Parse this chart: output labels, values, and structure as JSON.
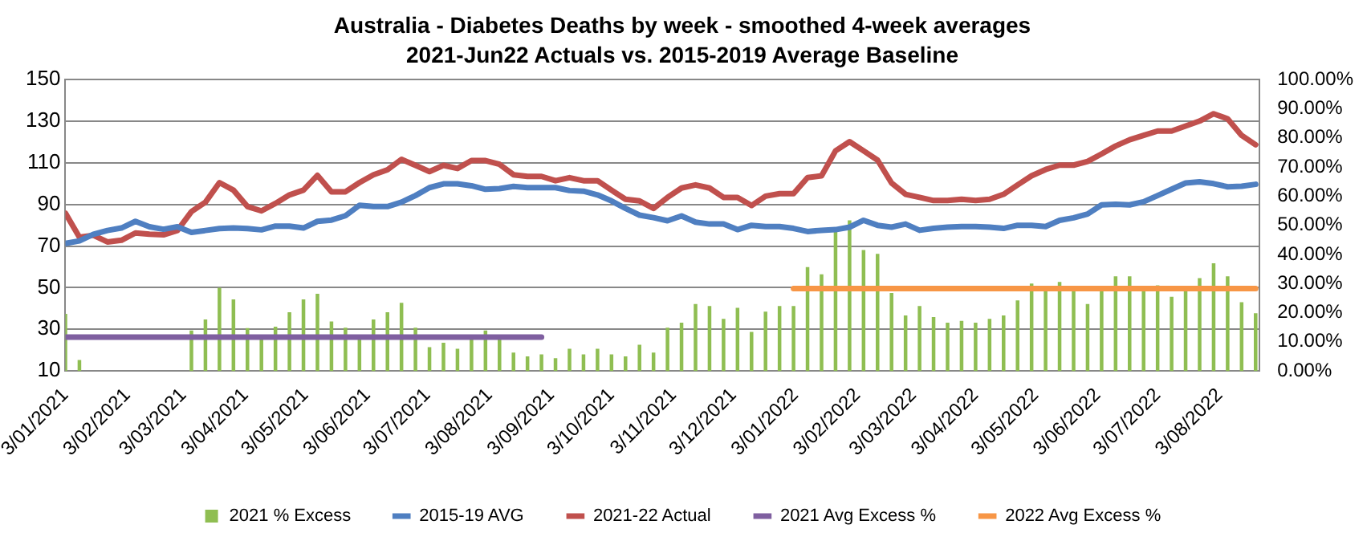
{
  "chart_data": {
    "type": "line",
    "title": "Australia - Diabetes Deaths by week - smoothed 4-week averages",
    "subtitle": "2021-Jun22 Actuals vs. 2015-2019 Average Baseline",
    "x": [
      "2021-01-03",
      "2021-01-10",
      "2021-01-17",
      "2021-01-24",
      "2021-01-31",
      "2021-02-07",
      "2021-02-14",
      "2021-02-21",
      "2021-02-28",
      "2021-03-07",
      "2021-03-14",
      "2021-03-21",
      "2021-03-28",
      "2021-04-04",
      "2021-04-11",
      "2021-04-18",
      "2021-04-25",
      "2021-05-02",
      "2021-05-09",
      "2021-05-16",
      "2021-05-23",
      "2021-05-30",
      "2021-06-06",
      "2021-06-13",
      "2021-06-20",
      "2021-06-27",
      "2021-07-04",
      "2021-07-11",
      "2021-07-18",
      "2021-07-25",
      "2021-08-01",
      "2021-08-08",
      "2021-08-15",
      "2021-08-22",
      "2021-08-29",
      "2021-09-05",
      "2021-09-12",
      "2021-09-19",
      "2021-09-26",
      "2021-10-03",
      "2021-10-10",
      "2021-10-17",
      "2021-10-24",
      "2021-10-31",
      "2021-11-07",
      "2021-11-14",
      "2021-11-21",
      "2021-11-28",
      "2021-12-05",
      "2021-12-12",
      "2021-12-19",
      "2021-12-26",
      "2022-01-02",
      "2022-01-09",
      "2022-01-16",
      "2022-01-23",
      "2022-01-30",
      "2022-02-06",
      "2022-02-13",
      "2022-02-20",
      "2022-02-27",
      "2022-03-06",
      "2022-03-13",
      "2022-03-20",
      "2022-03-27",
      "2022-04-03",
      "2022-04-10",
      "2022-04-17",
      "2022-04-24",
      "2022-05-01",
      "2022-05-08",
      "2022-05-15",
      "2022-05-22",
      "2022-05-29",
      "2022-06-05",
      "2022-06-12",
      "2022-06-19",
      "2022-06-26",
      "2022-07-03",
      "2022-07-10",
      "2022-07-17",
      "2022-07-24",
      "2022-07-31",
      "2022-08-07",
      "2022-08-14",
      "2022-08-21"
    ],
    "xlim": [
      "2021-01-03",
      "2022-08-23"
    ],
    "xticks": [
      {
        "value": "2021-01-03",
        "label": "3/01/2021"
      },
      {
        "value": "2021-02-03",
        "label": "3/02/2021"
      },
      {
        "value": "2021-03-03",
        "label": "3/03/2021"
      },
      {
        "value": "2021-04-03",
        "label": "3/04/2021"
      },
      {
        "value": "2021-05-03",
        "label": "3/05/2021"
      },
      {
        "value": "2021-06-03",
        "label": "3/06/2021"
      },
      {
        "value": "2021-07-03",
        "label": "3/07/2021"
      },
      {
        "value": "2021-08-03",
        "label": "3/08/2021"
      },
      {
        "value": "2021-09-03",
        "label": "3/09/2021"
      },
      {
        "value": "2021-10-03",
        "label": "3/10/2021"
      },
      {
        "value": "2021-11-03",
        "label": "3/11/2021"
      },
      {
        "value": "2021-12-03",
        "label": "3/12/2021"
      },
      {
        "value": "2022-01-03",
        "label": "3/01/2022"
      },
      {
        "value": "2022-02-03",
        "label": "3/02/2022"
      },
      {
        "value": "2022-03-03",
        "label": "3/03/2022"
      },
      {
        "value": "2022-04-03",
        "label": "3/04/2022"
      },
      {
        "value": "2022-05-03",
        "label": "3/05/2022"
      },
      {
        "value": "2022-06-03",
        "label": "3/06/2022"
      },
      {
        "value": "2022-07-03",
        "label": "3/07/2022"
      },
      {
        "value": "2022-08-03",
        "label": "3/08/2022"
      }
    ],
    "ylim": [
      10,
      150
    ],
    "yticks": [
      10,
      30,
      50,
      70,
      90,
      110,
      130,
      150
    ],
    "y2lim": [
      0,
      100
    ],
    "y2ticks": [
      {
        "value": 0,
        "label": "0.00%"
      },
      {
        "value": 10,
        "label": "10.00%"
      },
      {
        "value": 20,
        "label": "20.00%"
      },
      {
        "value": 30,
        "label": "30.00%"
      },
      {
        "value": 40,
        "label": "40.00%"
      },
      {
        "value": 50,
        "label": "50.00%"
      },
      {
        "value": 60,
        "label": "60.00%"
      },
      {
        "value": 70,
        "label": "70.00%"
      },
      {
        "value": 80,
        "label": "80.00%"
      },
      {
        "value": 90,
        "label": "90.00%"
      },
      {
        "value": 100,
        "label": "100.00%"
      }
    ],
    "series": [
      {
        "name": "2021 % Excess",
        "type": "bar",
        "axis": "y2",
        "color": "#8fbe52",
        "values": [
          19.4,
          3.6,
          null,
          null,
          null,
          null,
          null,
          null,
          null,
          13.7,
          17.5,
          28.4,
          24.4,
          14.5,
          11.6,
          15.0,
          20.0,
          24.4,
          26.3,
          16.8,
          14.7,
          11.6,
          17.5,
          20.0,
          23.2,
          14.7,
          8.0,
          9.5,
          7.4,
          11.0,
          13.7,
          12.0,
          6.1,
          4.8,
          5.5,
          4.2,
          7.4,
          5.5,
          7.4,
          5.5,
          4.8,
          8.8,
          6.1,
          14.7,
          16.4,
          22.8,
          22.1,
          17.7,
          21.5,
          13.2,
          20.2,
          22.1,
          22.1,
          35.5,
          33.0,
          47.9,
          51.5,
          41.3,
          40.0,
          26.6,
          18.9,
          22.1,
          18.3,
          16.4,
          17.0,
          16.4,
          17.7,
          18.9,
          24.0,
          29.8,
          28.5,
          30.4,
          28.5,
          22.8,
          28.5,
          32.3,
          32.3,
          28.5,
          29.2,
          25.3,
          28.5,
          31.7,
          36.8,
          32.3,
          23.4,
          19.6
        ]
      },
      {
        "name": "2015-19 AVG",
        "color": "#4f7fc1",
        "values": [
          71.3,
          72.5,
          75.7,
          77.5,
          78.7,
          81.9,
          79.3,
          78.1,
          79.3,
          76.6,
          77.5,
          78.4,
          78.7,
          78.4,
          77.8,
          79.6,
          79.6,
          78.7,
          81.9,
          82.5,
          84.6,
          89.6,
          89.0,
          89.0,
          91.1,
          94.3,
          98.1,
          99.9,
          99.9,
          99.0,
          97.3,
          97.6,
          98.7,
          98.1,
          98.1,
          98.1,
          96.7,
          96.4,
          94.6,
          91.7,
          88.1,
          84.9,
          83.7,
          82.2,
          84.5,
          81.5,
          80.6,
          80.6,
          77.9,
          80.0,
          79.4,
          79.4,
          78.5,
          77.0,
          77.6,
          77.9,
          79.1,
          82.4,
          80.0,
          79.1,
          80.6,
          77.6,
          78.5,
          79.1,
          79.4,
          79.4,
          79.1,
          78.5,
          80.0,
          80.0,
          79.4,
          82.4,
          83.6,
          85.4,
          89.8,
          90.1,
          89.8,
          91.3,
          94.3,
          97.3,
          100.3,
          100.9,
          100.0,
          98.5,
          98.8,
          99.7
        ]
      },
      {
        "name": "2021-22 Actual",
        "color": "#c0504d",
        "values": [
          85.8,
          74.3,
          75.2,
          72.0,
          72.8,
          76.3,
          75.7,
          75.4,
          77.5,
          86.6,
          91.1,
          100.5,
          96.9,
          89.0,
          86.9,
          90.5,
          94.6,
          96.9,
          104.0,
          96.1,
          96.1,
          100.5,
          104.3,
          106.7,
          111.7,
          108.8,
          105.8,
          108.8,
          107.3,
          111.1,
          111.1,
          109.3,
          104.3,
          103.5,
          103.5,
          101.4,
          102.9,
          101.4,
          101.4,
          96.9,
          92.5,
          91.7,
          88.1,
          93.4,
          97.9,
          99.4,
          97.9,
          93.4,
          93.4,
          89.5,
          94.0,
          95.2,
          95.2,
          102.9,
          103.8,
          115.8,
          120.2,
          115.8,
          111.3,
          100.3,
          94.9,
          93.4,
          91.9,
          91.9,
          92.5,
          91.9,
          92.5,
          94.9,
          99.4,
          103.8,
          106.8,
          108.9,
          108.9,
          110.7,
          114.3,
          118.1,
          121.1,
          123.2,
          125.3,
          125.3,
          127.7,
          130.1,
          133.6,
          131.2,
          123.2,
          118.7
        ]
      },
      {
        "name": "2021 Avg Excess %",
        "type": "line",
        "axis": "y2",
        "color": "#7f5fa0",
        "x": [
          "2021-01-03",
          "2021-08-29"
        ],
        "values": [
          11.6,
          11.6
        ]
      },
      {
        "name": "2022 Avg Excess %",
        "type": "line",
        "axis": "y2",
        "color": "#f79646",
        "x": [
          "2022-01-02",
          "2022-08-21"
        ],
        "values": [
          28.3,
          28.3
        ]
      }
    ],
    "grid": "y",
    "legend": "bottom",
    "marker": "none",
    "line_style": "solid"
  }
}
